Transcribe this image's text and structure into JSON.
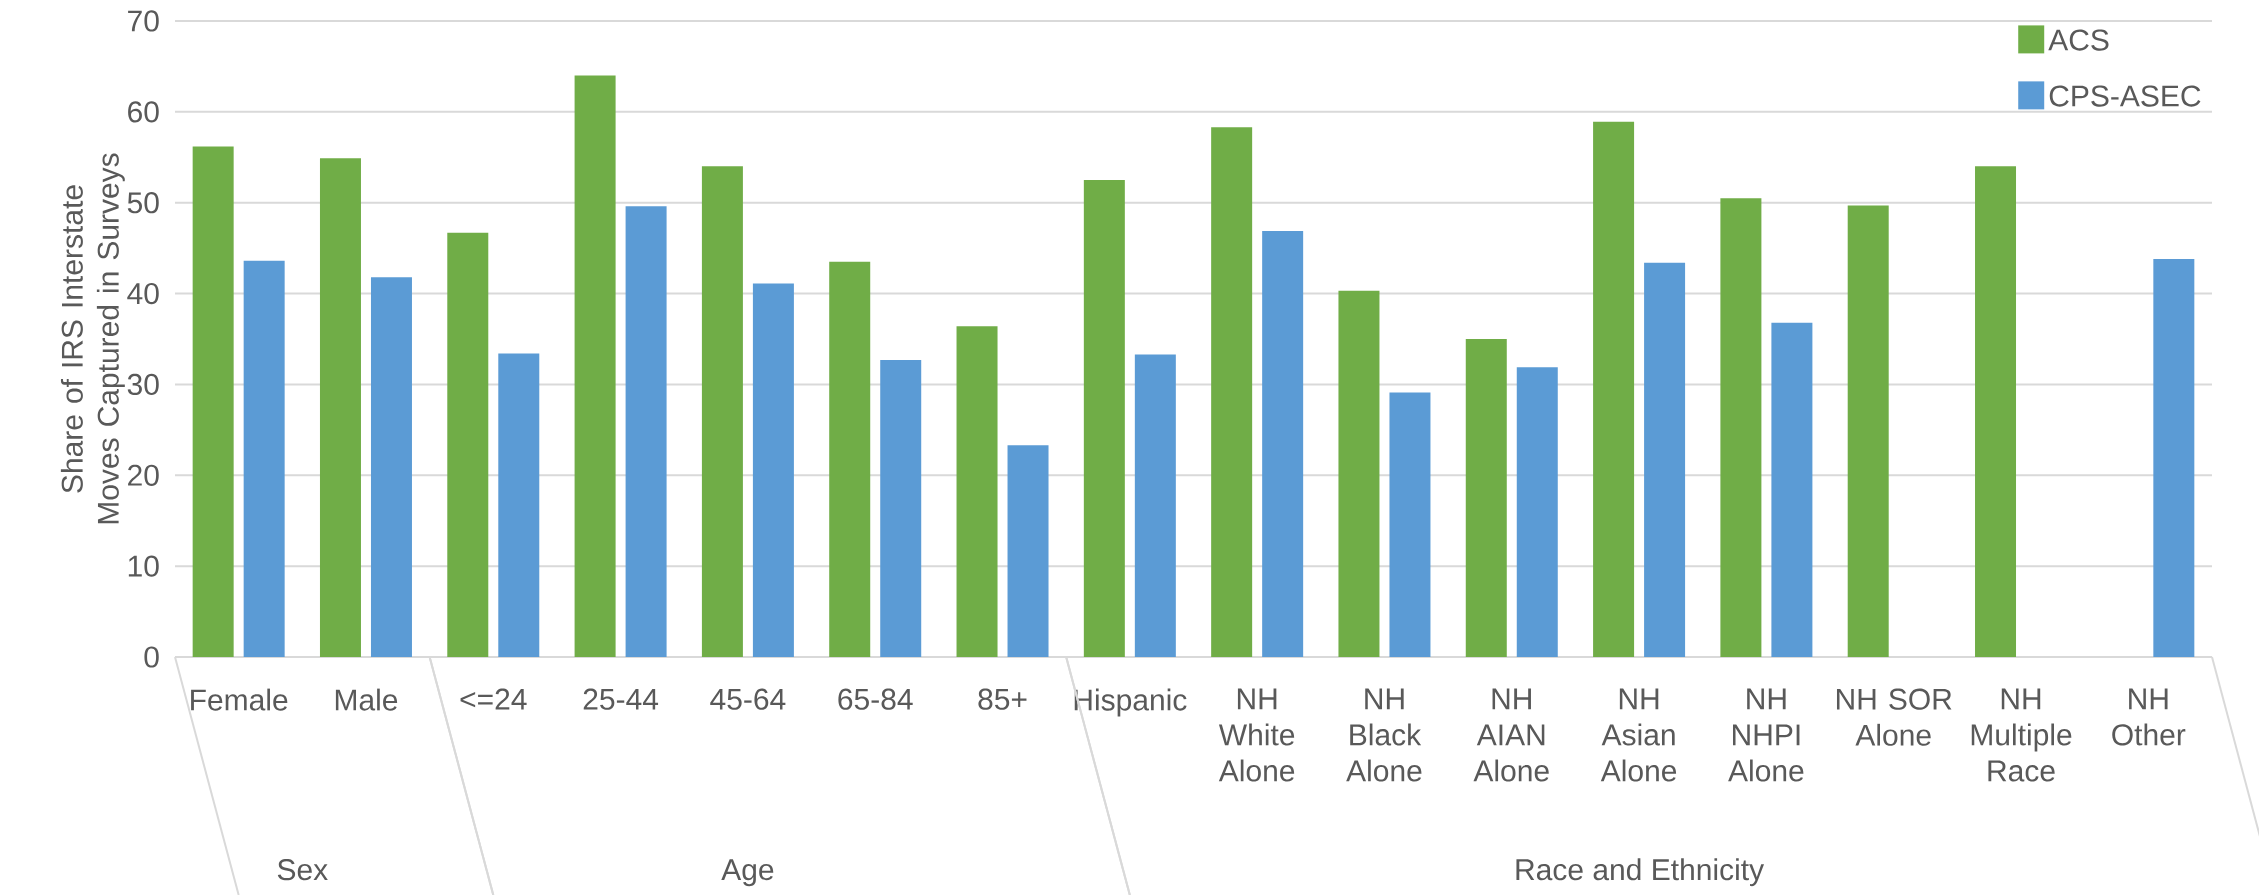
{
  "chart_data": {
    "type": "bar",
    "ylabel": "Share of IRS Interstate Moves Captured in Surveys",
    "categories": [
      "Female",
      "Male",
      "<=24",
      "25-44",
      "45-64",
      "65-84",
      "85+",
      "Hispanic",
      "NH White Alone",
      "NH Black Alone",
      "NH AIAN Alone",
      "NH Asian Alone",
      "NH NHPI Alone",
      "NH SOR Alone",
      "NH Multiple Race",
      "NH Other"
    ],
    "series": [
      {
        "name": "ACS",
        "color": "#70ad47",
        "values": [
          56.2,
          54.9,
          46.7,
          64.0,
          54.0,
          43.5,
          36.4,
          52.5,
          58.3,
          40.3,
          35.0,
          58.9,
          50.5,
          49.7,
          54.0,
          null
        ]
      },
      {
        "name": "CPS-ASEC",
        "color": "#5b9bd5",
        "values": [
          43.6,
          41.8,
          33.4,
          49.6,
          41.1,
          32.7,
          23.3,
          33.3,
          46.9,
          29.1,
          31.9,
          43.4,
          36.8,
          null,
          null,
          43.8
        ]
      }
    ],
    "annotations": [
      "Sex",
      "Age",
      "Race and Ethnicity"
    ],
    "ylim": [
      0,
      70
    ],
    "yticks": [
      0,
      10,
      20,
      30,
      40,
      50,
      60,
      70
    ],
    "grid": "y",
    "legend": "top right"
  }
}
